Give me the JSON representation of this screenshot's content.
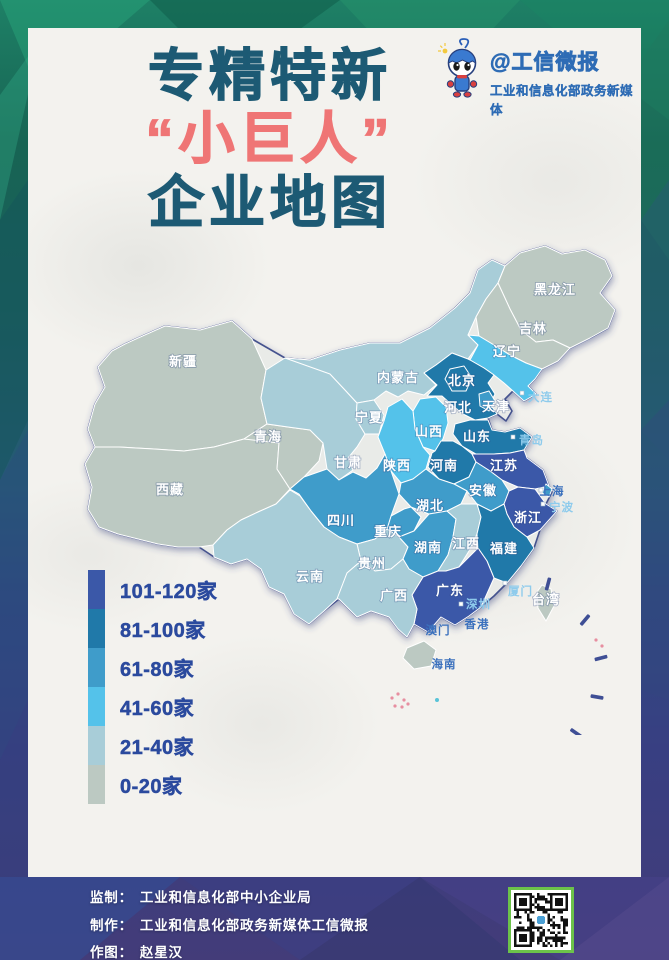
{
  "header": {
    "title_line1": "专精特新",
    "title_line2": "“小巨人”",
    "title_line3": "企业地图",
    "title_color": "#1d5a74",
    "highlight_color": "#ef7575"
  },
  "branding": {
    "handle": "@工信微报",
    "subtitle": "工业和信息化部政务新媒体",
    "color": "#2e6cb5"
  },
  "legend": {
    "text_color": "#2b4a9e",
    "items": [
      {
        "label": "101-120家",
        "key": "101-120",
        "color": "#3b58a8"
      },
      {
        "label": "81-100家",
        "key": "81-100",
        "color": "#2079a9"
      },
      {
        "label": "61-80家",
        "key": "61-80",
        "color": "#3f9cca"
      },
      {
        "label": "41-60家",
        "key": "41-60",
        "color": "#54c2ea"
      },
      {
        "label": "21-40家",
        "key": "21-40",
        "color": "#a8cdd8"
      },
      {
        "label": "0-20家",
        "key": "0-20",
        "color": "#bcc9c2"
      }
    ]
  },
  "map": {
    "provinces": [
      {
        "name": "新疆",
        "category": "0-20"
      },
      {
        "name": "西藏",
        "category": "0-20"
      },
      {
        "name": "青海",
        "category": "0-20"
      },
      {
        "name": "黑龙江",
        "category": "0-20"
      },
      {
        "name": "吉林",
        "category": "0-20"
      },
      {
        "name": "台湾",
        "category": "0-20"
      },
      {
        "name": "海南",
        "category": "0-20"
      },
      {
        "name": "内蒙古",
        "category": "21-40"
      },
      {
        "name": "宁夏",
        "category": "21-40"
      },
      {
        "name": "甘肃",
        "category": "21-40"
      },
      {
        "name": "云南",
        "category": "21-40"
      },
      {
        "name": "贵州",
        "category": "21-40"
      },
      {
        "name": "广西",
        "category": "21-40"
      },
      {
        "name": "江西",
        "category": "21-40"
      },
      {
        "name": "辽宁",
        "category": "41-60"
      },
      {
        "name": "山西",
        "category": "41-60"
      },
      {
        "name": "陕西",
        "category": "41-60"
      },
      {
        "name": "天津",
        "category": "61-80"
      },
      {
        "name": "上海",
        "category": "61-80"
      },
      {
        "name": "安徽",
        "category": "61-80"
      },
      {
        "name": "湖北",
        "category": "61-80"
      },
      {
        "name": "湖南",
        "category": "61-80"
      },
      {
        "name": "重庆",
        "category": "61-80"
      },
      {
        "name": "四川",
        "category": "61-80"
      },
      {
        "name": "北京",
        "category": "81-100"
      },
      {
        "name": "河北",
        "category": "81-100"
      },
      {
        "name": "山东",
        "category": "81-100"
      },
      {
        "name": "河南",
        "category": "81-100"
      },
      {
        "name": "福建",
        "category": "81-100"
      },
      {
        "name": "江苏",
        "category": "101-120"
      },
      {
        "name": "浙江",
        "category": "101-120"
      },
      {
        "name": "广东",
        "category": "101-120"
      }
    ],
    "cities": [
      {
        "name": "大连",
        "style": "light",
        "dot": true
      },
      {
        "name": "青岛",
        "style": "light",
        "dot": true
      },
      {
        "name": "上海",
        "style": "blue",
        "dot": true
      },
      {
        "name": "宁波",
        "style": "light",
        "dot": true
      },
      {
        "name": "厦门",
        "style": "light",
        "dot": true
      },
      {
        "name": "深圳",
        "style": "light",
        "dot": true
      },
      {
        "name": "香港",
        "style": "blue",
        "dot": false
      },
      {
        "name": "澳门",
        "style": "blue",
        "dot": false
      }
    ]
  },
  "chart_data": {
    "type": "heatmap",
    "subtype": "choropleth-map",
    "title": "专精特新“小巨人”企业地图",
    "unit": "家",
    "bins": [
      "0-20家",
      "21-40家",
      "41-60家",
      "61-80家",
      "81-100家",
      "101-120家"
    ],
    "regions": {
      "101-120家": [
        "江苏",
        "浙江",
        "广东"
      ],
      "81-100家": [
        "北京",
        "河北",
        "山东",
        "河南",
        "福建"
      ],
      "61-80家": [
        "天津",
        "上海",
        "安徽",
        "湖北",
        "湖南",
        "重庆",
        "四川"
      ],
      "41-60家": [
        "辽宁",
        "山西",
        "陕西"
      ],
      "21-40家": [
        "内蒙古",
        "宁夏",
        "甘肃",
        "江西",
        "广西",
        "云南",
        "贵州"
      ],
      "0-20家": [
        "黑龙江",
        "吉林",
        "新疆",
        "青海",
        "西藏",
        "海南",
        "台湾"
      ]
    }
  },
  "credits": {
    "rows": [
      {
        "label": "监制：",
        "value": "工业和信息化部中小企业局"
      },
      {
        "label": "制作：",
        "value": "工业和信息化部政务新媒体工信微报"
      },
      {
        "label": "作图：",
        "value": "赵星汉"
      }
    ]
  },
  "qr": {
    "border_color": "#6cc24a"
  }
}
